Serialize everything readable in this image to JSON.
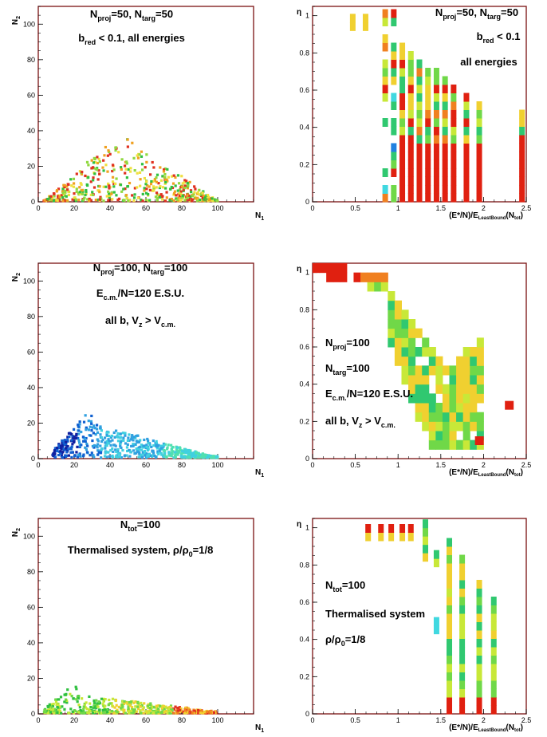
{
  "chart_data": [
    {
      "type": "scatter",
      "panel": "left-1",
      "xlabel": "N1",
      "ylabel": "N2",
      "xlim": [
        0,
        120
      ],
      "ylim": [
        0,
        110
      ],
      "xticks": [
        0,
        20,
        40,
        60,
        80,
        100
      ],
      "yticks": [
        0,
        20,
        40,
        60,
        80,
        100
      ],
      "annotations": [
        "N_proj=50, N_targ=50",
        "b_red < 0.1, all energies"
      ],
      "description_values": {
        "shape": "triangle",
        "peak": [
          45,
          38
        ],
        "x_range": [
          5,
          100
        ]
      },
      "colors": [
        "#e03020",
        "#f0a020",
        "#f0e040",
        "#90d840",
        "#30c040"
      ]
    },
    {
      "type": "heatmap",
      "panel": "right-1",
      "xlabel": "(E*/N)/E_LeastBound(N_tot)",
      "ylabel": "η",
      "xlim": [
        0,
        2.5
      ],
      "ylim": [
        0,
        1.05
      ],
      "xticks": [
        0,
        0.5,
        1,
        1.5,
        2,
        2.5
      ],
      "yticks": [
        0,
        0.2,
        0.4,
        0.6,
        0.8,
        1
      ],
      "annotations": [
        "N_proj=50, N_targ=50",
        "b_red < 0.1",
        "all energies"
      ],
      "columns_x": [
        0.47,
        0.62,
        0.85,
        0.95,
        1.05,
        1.15,
        1.25,
        1.35,
        1.45,
        1.55,
        1.65,
        1.8,
        1.95,
        2.45
      ]
    },
    {
      "type": "scatter",
      "panel": "left-2",
      "xlabel": "N1",
      "ylabel": "N2",
      "xlim": [
        0,
        120
      ],
      "ylim": [
        0,
        110
      ],
      "xticks": [
        0,
        20,
        40,
        60,
        80,
        100
      ],
      "yticks": [
        0,
        20,
        40,
        60,
        80,
        100
      ],
      "annotations": [
        "N_proj=100, N_targ=100",
        "E_c.m./N=120 E.S.U.",
        "all b, V_z > V_c.m."
      ],
      "colors": [
        "#1020a0",
        "#1060d0",
        "#30a0e0",
        "#40d0e0",
        "#50e0b0"
      ]
    },
    {
      "type": "heatmap",
      "panel": "right-2",
      "xlabel": "(E*/N)/E_LeastBound(N_tot)",
      "ylabel": "η",
      "xlim": [
        0,
        2.5
      ],
      "ylim": [
        0,
        1.05
      ],
      "xticks": [
        0,
        0.5,
        1,
        1.5,
        2,
        2.5
      ],
      "yticks": [
        0,
        0.2,
        0.4,
        0.6,
        0.8,
        1
      ],
      "annotations": [
        "N_proj=100",
        "N_targ=100",
        "E_c.m./N=120 E.S.U.",
        "all b, V_z > V_c.m."
      ]
    },
    {
      "type": "scatter",
      "panel": "left-3",
      "xlabel": "N1",
      "ylabel": "N2",
      "xlim": [
        0,
        120
      ],
      "ylim": [
        0,
        110
      ],
      "xticks": [
        0,
        20,
        40,
        60,
        80,
        100
      ],
      "yticks": [
        0,
        20,
        40,
        60,
        80,
        100
      ],
      "annotations": [
        "N_tot=100",
        "Thermalised system, ρ/ρ_0=1/8"
      ]
    },
    {
      "type": "heatmap",
      "panel": "right-3",
      "xlabel": "(E*/N)/E_LeastBound(N_tot)",
      "ylabel": "η",
      "xlim": [
        0,
        2.5
      ],
      "ylim": [
        0,
        1.05
      ],
      "xticks": [
        0,
        0.5,
        1,
        1.5,
        2,
        2.5
      ],
      "yticks": [
        0,
        0.2,
        0.4,
        0.6,
        0.8,
        1
      ],
      "annotations": [
        "N_tot=100",
        "Thermalised system",
        "ρ/ρ_0=1/8"
      ],
      "columns_x": [
        0.65,
        0.8,
        0.92,
        1.05,
        1.15,
        1.32,
        1.45,
        1.6,
        1.75,
        1.95,
        2.12
      ]
    }
  ]
}
